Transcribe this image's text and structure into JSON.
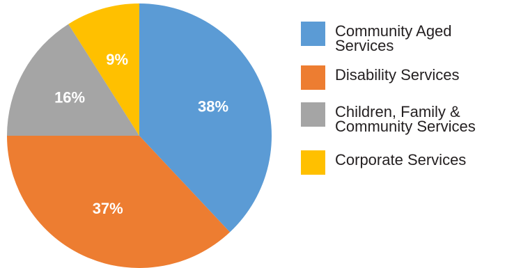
{
  "chart_data": {
    "type": "pie",
    "slices": [
      {
        "name": "Community Aged Services",
        "value": 38,
        "label": "38%",
        "color": "#5b9bd5"
      },
      {
        "name": "Disability Services",
        "value": 37,
        "label": "37%",
        "color": "#ed7d31"
      },
      {
        "name": "Children, Family & Community Services",
        "value": 16,
        "label": "16%",
        "color": "#a5a5a5"
      },
      {
        "name": "Corporate Services",
        "value": 9,
        "label": "9%",
        "color": "#ffc000"
      }
    ],
    "start_angle_deg": 0,
    "direction": "clockwise",
    "legend_position": "right"
  },
  "legend": {
    "items": [
      {
        "line1": "Community Aged",
        "line2": "Services"
      },
      {
        "line1": "Disability Services",
        "line2": ""
      },
      {
        "line1": "Children, Family &",
        "line2": "Community Services"
      },
      {
        "line1": "Corporate Services",
        "line2": ""
      }
    ]
  }
}
